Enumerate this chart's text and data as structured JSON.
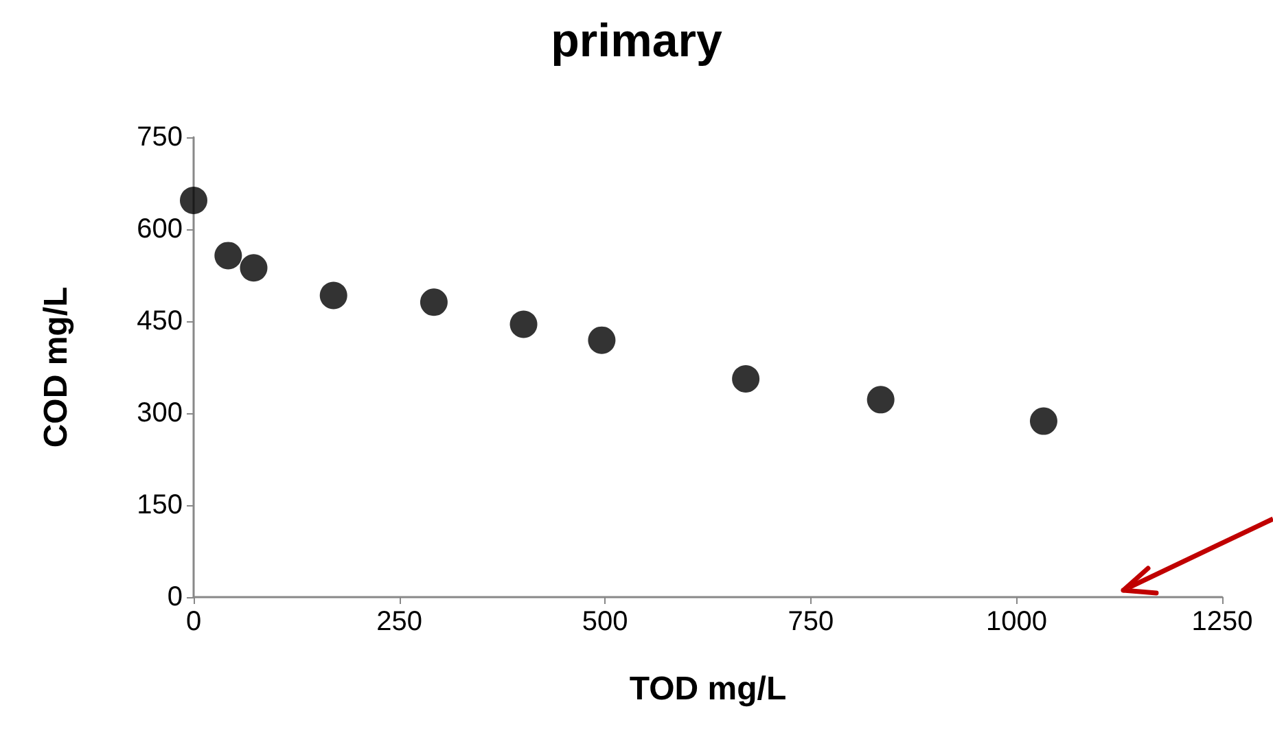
{
  "chart_data": {
    "type": "scatter",
    "title": "primary",
    "xlabel": "TOD mg/L",
    "ylabel": "COD mg/L",
    "x": [
      0,
      42,
      73,
      170,
      292,
      401,
      496,
      671,
      835,
      1033
    ],
    "series": [
      {
        "color": "#000000",
        "values": [
          647,
          557,
          537,
          492,
          481,
          445,
          419,
          356,
          322,
          287
        ]
      }
    ],
    "xlim": [
      0,
      1250
    ],
    "xticks": [
      0,
      250,
      500,
      750,
      1000,
      1250
    ],
    "ylim": [
      0,
      750
    ],
    "yticks": [
      0,
      150,
      300,
      450,
      600,
      750
    ],
    "grid": false,
    "marker": "circle"
  }
}
